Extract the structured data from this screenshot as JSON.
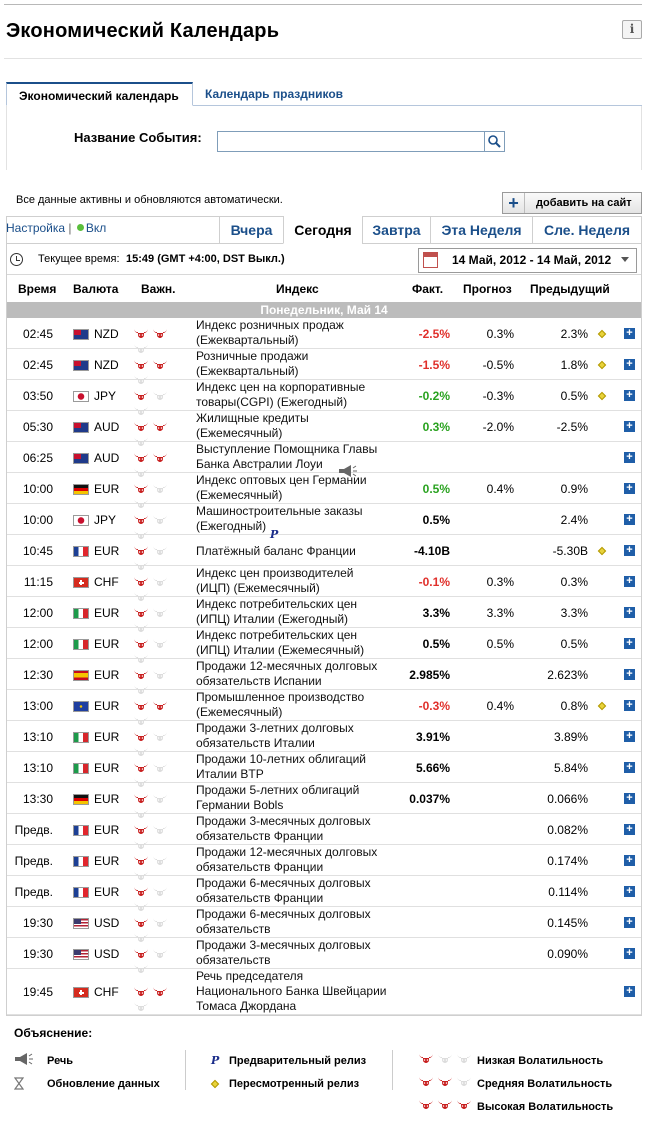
{
  "title": "Экономический Календарь",
  "tabs": [
    "Экономический календарь",
    "Календарь праздников"
  ],
  "search": {
    "label": "Название События:",
    "value": ""
  },
  "auto_note": "Все данные активны и обновляются автоматически.",
  "add_button": "добавить на сайт",
  "settings": {
    "label": "Настройка",
    "separator": "|",
    "state": "Вкл"
  },
  "date_tabs": [
    "Вчера",
    "Сегодня",
    "Завтра",
    "Эта Неделя",
    "Сле. Неделя"
  ],
  "current_time": {
    "label": "Текущее время:",
    "value": "15:49 (GMT +4:00, DST Выкл.)"
  },
  "date_range": "14 Май, 2012 - 14 Май, 2012",
  "columns": [
    "Время",
    "Валюта",
    "Важн.",
    "Индекс",
    "Факт.",
    "Прогноз",
    "Предыдущий"
  ],
  "day_header": "Понедельник, Май 14",
  "colors": {
    "accent": "#1b4f8a",
    "positive": "#29a21f",
    "negative": "#e0302b",
    "bull": "#c81e1e"
  },
  "events": [
    {
      "time": "02:45",
      "flag": "nz",
      "currency": "NZD",
      "importance": 2,
      "name": [
        "Индекс розничных продаж",
        "(Ежеквартальный)"
      ],
      "actual": "-2.5%",
      "trend": "down",
      "forecast": "0.3%",
      "previous": "2.3%",
      "revised": true
    },
    {
      "time": "02:45",
      "flag": "nz",
      "currency": "NZD",
      "importance": 2,
      "name": [
        "Розничные продажи",
        "(Ежеквартальный)"
      ],
      "actual": "-1.5%",
      "trend": "down",
      "forecast": "-0.5%",
      "previous": "1.8%",
      "revised": true
    },
    {
      "time": "03:50",
      "flag": "jp",
      "currency": "JPY",
      "importance": 1,
      "name": [
        "Индекс цен на корпоративные",
        "товары(CGPI) (Ежегодный)"
      ],
      "actual": "-0.2%",
      "trend": "up",
      "forecast": "-0.3%",
      "previous": "0.5%",
      "revised": true
    },
    {
      "time": "05:30",
      "flag": "au",
      "currency": "AUD",
      "importance": 2,
      "name": [
        "Жилищные кредиты",
        "(Ежемесячный)"
      ],
      "actual": "0.3%",
      "trend": "up",
      "forecast": "-2.0%",
      "previous": "-2.5%",
      "revised": false
    },
    {
      "time": "06:25",
      "flag": "au",
      "currency": "AUD",
      "importance": 2,
      "name": [
        "Выступление Помощника Главы",
        "Банка Австралии Лоуи"
      ],
      "actual": "",
      "trend": "",
      "forecast": "",
      "previous": "",
      "revised": false,
      "speech": true
    },
    {
      "time": "10:00",
      "flag": "de",
      "currency": "EUR",
      "importance": 1,
      "name": [
        "Индекс оптовых цен Германии",
        "(Ежемесячный)"
      ],
      "actual": "0.5%",
      "trend": "up",
      "forecast": "0.4%",
      "previous": "0.9%",
      "revised": false
    },
    {
      "time": "10:00",
      "flag": "jp",
      "currency": "JPY",
      "importance": 1,
      "name": [
        "Машиностроительные заказы",
        "(Ежегодный)"
      ],
      "actual": "0.5%",
      "trend": "",
      "forecast": "",
      "previous": "2.4%",
      "revised": false,
      "prelim": true
    },
    {
      "time": "10:45",
      "flag": "fr",
      "currency": "EUR",
      "importance": 1,
      "name": [
        "Платёжный баланс Франции"
      ],
      "actual": "-4.10B",
      "trend": "",
      "forecast": "",
      "previous": "-5.30B",
      "revised": true
    },
    {
      "time": "11:15",
      "flag": "ch",
      "currency": "CHF",
      "importance": 1,
      "name": [
        "Индекс цен производителей",
        "(ИЦП) (Ежемесячный)"
      ],
      "actual": "-0.1%",
      "trend": "down",
      "forecast": "0.3%",
      "previous": "0.3%",
      "revised": false
    },
    {
      "time": "12:00",
      "flag": "it",
      "currency": "EUR",
      "importance": 1,
      "name": [
        "Индекс потребительских цен",
        "(ИПЦ) Италии (Ежегодный)"
      ],
      "actual": "3.3%",
      "trend": "",
      "forecast": "3.3%",
      "previous": "3.3%",
      "revised": false
    },
    {
      "time": "12:00",
      "flag": "it",
      "currency": "EUR",
      "importance": 1,
      "name": [
        "Индекс потребительских цен",
        "(ИПЦ) Италии (Ежемесячный)"
      ],
      "actual": "0.5%",
      "trend": "",
      "forecast": "0.5%",
      "previous": "0.5%",
      "revised": false
    },
    {
      "time": "12:30",
      "flag": "es",
      "currency": "EUR",
      "importance": 1,
      "name": [
        "Продажи 12-месячных долговых",
        "обязательств Испании"
      ],
      "actual": "2.985%",
      "trend": "",
      "forecast": "",
      "previous": "2.623%",
      "revised": false
    },
    {
      "time": "13:00",
      "flag": "eu",
      "currency": "EUR",
      "importance": 2,
      "name": [
        "Промышленное производство",
        "(Ежемесячный)"
      ],
      "actual": "-0.3%",
      "trend": "down",
      "forecast": "0.4%",
      "previous": "0.8%",
      "revised": true
    },
    {
      "time": "13:10",
      "flag": "it",
      "currency": "EUR",
      "importance": 1,
      "name": [
        "Продажи 3-летних долговых",
        "обязательств Италии"
      ],
      "actual": "3.91%",
      "trend": "",
      "forecast": "",
      "previous": "3.89%",
      "revised": false
    },
    {
      "time": "13:10",
      "flag": "it",
      "currency": "EUR",
      "importance": 1,
      "name": [
        "Продажи 10-летних облигаций",
        "Италии BTP"
      ],
      "actual": "5.66%",
      "trend": "",
      "forecast": "",
      "previous": "5.84%",
      "revised": false
    },
    {
      "time": "13:30",
      "flag": "de",
      "currency": "EUR",
      "importance": 1,
      "name": [
        "Продажи 5-летних облигаций",
        "Германии Bobls"
      ],
      "actual": "0.037%",
      "trend": "",
      "forecast": "",
      "previous": "0.066%",
      "revised": false
    },
    {
      "time": "Предв.",
      "flag": "fr",
      "currency": "EUR",
      "importance": 1,
      "name": [
        "Продажи 3-месячных долговых",
        "обязательств Франции"
      ],
      "actual": "",
      "trend": "",
      "forecast": "",
      "previous": "0.082%",
      "revised": false
    },
    {
      "time": "Предв.",
      "flag": "fr",
      "currency": "EUR",
      "importance": 1,
      "name": [
        "Продажи 12-месячных долговых",
        "обязательств Франции"
      ],
      "actual": "",
      "trend": "",
      "forecast": "",
      "previous": "0.174%",
      "revised": false
    },
    {
      "time": "Предв.",
      "flag": "fr",
      "currency": "EUR",
      "importance": 1,
      "name": [
        "Продажи 6-месячных долговых",
        "обязательств Франции"
      ],
      "actual": "",
      "trend": "",
      "forecast": "",
      "previous": "0.114%",
      "revised": false
    },
    {
      "time": "19:30",
      "flag": "us",
      "currency": "USD",
      "importance": 1,
      "name": [
        "Продажи 6-месячных долговых",
        "обязательств"
      ],
      "actual": "",
      "trend": "",
      "forecast": "",
      "previous": "0.145%",
      "revised": false
    },
    {
      "time": "19:30",
      "flag": "us",
      "currency": "USD",
      "importance": 1,
      "name": [
        "Продажи 3-месячных долговых",
        "обязательств"
      ],
      "actual": "",
      "trend": "",
      "forecast": "",
      "previous": "0.090%",
      "revised": false
    },
    {
      "time": "19:45",
      "flag": "ch",
      "currency": "CHF",
      "importance": 2,
      "name": [
        "Речь председателя",
        "Национального Банка Швейцарии",
        "Томаса Джордана"
      ],
      "actual": "",
      "trend": "",
      "forecast": "",
      "previous": "",
      "revised": false
    }
  ],
  "legend": {
    "title": "Объяснение:",
    "speech": "Речь",
    "data_update": "Обновление данных",
    "prelim_symbol": "P",
    "prelim": "Предварительный релиз",
    "revised": "Пересмотренный релиз",
    "low": "Низкая Волатильность",
    "medium": "Средняя Волатильность",
    "high": "Высокая Волатильность"
  }
}
